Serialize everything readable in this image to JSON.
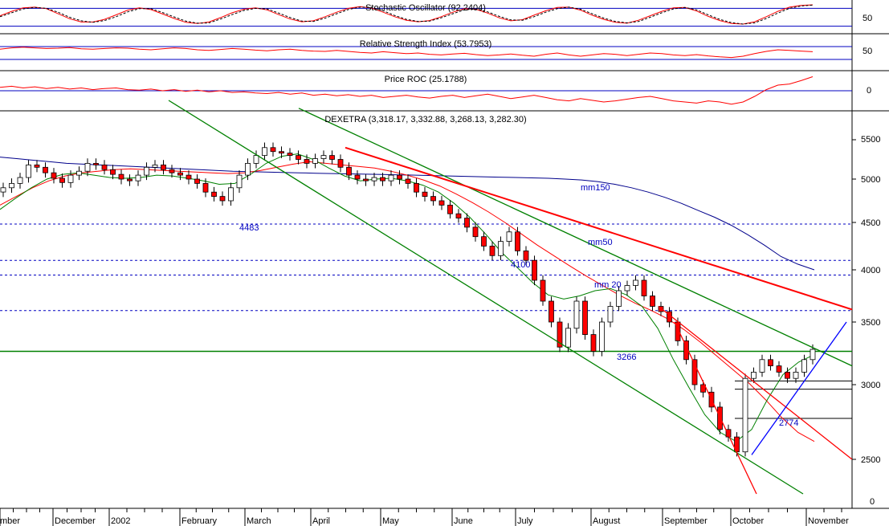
{
  "chart_data": [
    {
      "type": "line",
      "title": "Stochastic Oscillator (92.2404)",
      "ytick_labels": [
        "50"
      ],
      "reference_lines": [
        80,
        20
      ],
      "ylim": [
        0,
        100
      ],
      "series": [
        {
          "color": "#ff0000",
          "values": [
            55,
            70,
            82,
            84,
            79,
            62,
            45,
            34,
            34,
            43,
            58,
            74,
            82,
            76,
            61,
            46,
            33,
            29,
            34,
            49,
            65,
            77,
            82,
            75,
            59,
            44,
            35,
            38,
            52,
            67,
            80,
            86,
            81,
            67,
            52,
            40,
            35,
            39,
            52,
            67,
            79,
            77,
            64,
            48,
            38,
            42,
            57,
            72,
            83,
            84,
            74,
            57,
            43,
            33,
            30,
            40,
            55,
            70,
            82,
            83,
            71,
            53,
            39,
            29,
            27,
            35,
            52,
            70,
            84,
            90,
            92
          ]
        },
        {
          "color": "#000000",
          "dashed": true,
          "values": [
            52,
            65,
            78,
            83,
            80,
            67,
            50,
            38,
            33,
            39,
            52,
            68,
            79,
            79,
            66,
            51,
            37,
            30,
            31,
            44,
            59,
            73,
            80,
            78,
            64,
            49,
            37,
            36,
            47,
            62,
            76,
            84,
            83,
            72,
            56,
            43,
            36,
            37,
            48,
            62,
            75,
            78,
            68,
            53,
            41,
            40,
            52,
            67,
            79,
            84,
            77,
            62,
            47,
            36,
            31,
            36,
            50,
            65,
            78,
            83,
            75,
            58,
            43,
            32,
            27,
            31,
            46,
            64,
            80,
            88,
            91
          ]
        }
      ]
    },
    {
      "type": "line",
      "title": "Relative Strength Index (53.7953)",
      "ytick_labels": [
        "50"
      ],
      "reference_lines": [
        70,
        30
      ],
      "ylim": [
        0,
        100
      ],
      "series": [
        {
          "color": "#ff0000",
          "values": [
            62,
            66,
            68,
            66,
            64,
            65,
            67,
            63,
            62,
            64,
            66,
            65,
            62,
            60,
            63,
            66,
            64,
            60,
            58,
            61,
            64,
            62,
            59,
            57,
            60,
            62,
            58,
            56,
            55,
            58,
            55,
            52,
            50,
            54,
            51,
            48,
            50,
            46,
            44,
            47,
            49,
            45,
            42,
            44,
            47,
            43,
            40,
            46,
            50,
            44,
            40,
            44,
            48,
            46,
            42,
            46,
            50,
            48,
            44,
            42,
            45,
            41,
            38,
            36,
            40,
            48,
            55,
            60,
            58,
            56,
            54
          ]
        }
      ]
    },
    {
      "type": "line",
      "title": "Price ROC (25.1788)",
      "ytick_labels": [
        "0"
      ],
      "reference_lines": [
        0
      ],
      "ylim": [
        -30,
        30
      ],
      "series": [
        {
          "color": "#ff0000",
          "values": [
            6,
            8,
            5,
            7,
            4,
            6,
            3,
            5,
            2,
            4,
            5,
            2,
            1,
            3,
            0,
            2,
            -1,
            1,
            -2,
            0,
            -3,
            -2,
            -4,
            -5,
            -3,
            -6,
            -4,
            -8,
            -6,
            -9,
            -7,
            -10,
            -8,
            -12,
            -10,
            -8,
            -11,
            -13,
            -10,
            -8,
            -12,
            -9,
            -6,
            -10,
            -14,
            -11,
            -8,
            -12,
            -16,
            -18,
            -14,
            -17,
            -20,
            -18,
            -15,
            -12,
            -10,
            -14,
            -18,
            -20,
            -22,
            -18,
            -20,
            -24,
            -20,
            -10,
            2,
            10,
            12,
            18,
            25
          ]
        }
      ]
    },
    {
      "type": "line",
      "title": "DEXETRA (3,318.17, 3,332.88, 3,268.13, 3,282.30)",
      "ytick_labels": [
        "5500",
        "5000",
        "4500",
        "4000",
        "3500",
        "3000",
        "2500",
        "0"
      ],
      "xtick_labels": [
        "mber",
        "December",
        "2002",
        "February",
        "March",
        "April",
        "May",
        "June",
        "July",
        "August",
        "September",
        "October",
        "November"
      ],
      "annotations": [
        {
          "text": "4483",
          "x": "January",
          "y": 4483
        },
        {
          "text": "4100",
          "x": "June",
          "y": 4100
        },
        {
          "text": "3266",
          "x": "August",
          "y": 3266
        },
        {
          "text": "2774",
          "x": "October",
          "y": 2774
        },
        {
          "text": "mm150",
          "x": "August",
          "y": 4860
        },
        {
          "text": "mm50",
          "x": "August",
          "y": 4310
        },
        {
          "text": "mm 20",
          "x": "July",
          "y": 3900
        }
      ],
      "horizontal_levels": [
        {
          "y": 4483,
          "color": "#0000c0",
          "style": "dashed"
        },
        {
          "y": 4100,
          "color": "#0000c0",
          "style": "dashed"
        },
        {
          "y": 3950,
          "color": "#0000c0",
          "style": "dashed"
        },
        {
          "y": 3610,
          "color": "#0000c0",
          "style": "dashed"
        },
        {
          "y": 3266,
          "color": "#008000",
          "style": "solid"
        },
        {
          "y": 3030,
          "color": "#000000",
          "style": "solid"
        },
        {
          "y": 2970,
          "color": "#000000",
          "style": "solid"
        },
        {
          "y": 2774,
          "color": "#000000",
          "style": "solid"
        }
      ],
      "close": [
        4900,
        4950,
        5020,
        5180,
        5150,
        5080,
        5010,
        4960,
        5050,
        5100,
        5200,
        5180,
        5120,
        5060,
        5000,
        4980,
        5050,
        5150,
        5180,
        5120,
        5080,
        5050,
        5000,
        4950,
        4850,
        4800,
        4750,
        4900,
        5050,
        5200,
        5300,
        5400,
        5350,
        5330,
        5300,
        5250,
        5200,
        5260,
        5300,
        5250,
        5150,
        5050,
        5000,
        4980,
        5020,
        4980,
        5050,
        5000,
        4950,
        4850,
        4800,
        4750,
        4700,
        4600,
        4550,
        4450,
        4350,
        4250,
        4150,
        4300,
        4400,
        4200,
        4100,
        3900,
        3700,
        3500,
        3300,
        3450,
        3700,
        3400,
        3266,
        3500,
        3650,
        3800,
        3850,
        3900,
        3750,
        3650,
        3600,
        3500,
        3350,
        3200,
        3000,
        2950,
        2850,
        2700,
        2650,
        2550,
        3050,
        3100,
        3200,
        3150,
        3100,
        3050,
        3100,
        3200,
        3282
      ],
      "ma_series": [
        {
          "name": "mm150",
          "color": "#00008b",
          "values": [
            5280,
            5260,
            5240,
            5220,
            5200,
            5190,
            5180,
            5170,
            5160,
            5150,
            5140,
            5130,
            5120,
            5110,
            5100,
            5095,
            5090,
            5085,
            5080,
            5075,
            5070,
            5066,
            5062,
            5058,
            5054,
            5050,
            5045,
            5040,
            5035,
            5030,
            5025,
            5020,
            5015,
            5010,
            5000,
            4990,
            4970,
            4940,
            4900,
            4850,
            4790,
            4720,
            4640,
            4560,
            4470,
            4370,
            4260,
            4140,
            4060,
            4000
          ]
        },
        {
          "name": "mm50",
          "color": "#ff0000",
          "values": [
            4700,
            4800,
            4900,
            4980,
            5040,
            5080,
            5100,
            5120,
            5130,
            5120,
            5110,
            5100,
            5090,
            5080,
            5070,
            5080,
            5110,
            5150,
            5190,
            5220,
            5200,
            5180,
            5160,
            5140,
            5100,
            5050,
            4990,
            4920,
            4830,
            4730,
            4620,
            4500,
            4380,
            4260,
            4150,
            4040,
            3940,
            3850,
            3760,
            3680,
            3610,
            3530,
            3440,
            3340,
            3230,
            3120,
            3010,
            2900,
            2780,
            2680,
            2620
          ]
        },
        {
          "name": "mm 20",
          "color": "#008000",
          "values": [
            4650,
            4780,
            4900,
            5000,
            5060,
            5080,
            5050,
            5020,
            5010,
            5020,
            5050,
            5040,
            5010,
            4980,
            4940,
            4950,
            5060,
            5200,
            5290,
            5320,
            5250,
            5140,
            5040,
            4980,
            5000,
            5010,
            4980,
            4930,
            4850,
            4720,
            4560,
            4380,
            4190,
            4030,
            3880,
            3760,
            3720,
            3750,
            3800,
            3820,
            3760,
            3650,
            3450,
            3200,
            2980,
            2800,
            2680,
            2620,
            2700,
            2900,
            3080,
            3180,
            3240
          ]
        }
      ],
      "trend_lines": [
        {
          "color": "#008000",
          "from": [
            "November",
            6000
          ],
          "to": [
            "October",
            2300
          ]
        },
        {
          "color": "#008000",
          "from": [
            "March",
            5900
          ],
          "to": [
            "November",
            3150
          ]
        },
        {
          "color": "#ff0000",
          "from": [
            "April",
            5400
          ],
          "to": [
            "November",
            3620
          ]
        },
        {
          "color": "#ff0000",
          "from": [
            "September",
            3650
          ],
          "to": [
            "November",
            2500
          ]
        },
        {
          "color": "#ff0000",
          "from": [
            "September",
            3500
          ],
          "to": [
            "October",
            2300
          ]
        },
        {
          "color": "#0000ff",
          "from": [
            "October",
            2530
          ],
          "to": [
            "November",
            3500
          ]
        }
      ]
    }
  ]
}
